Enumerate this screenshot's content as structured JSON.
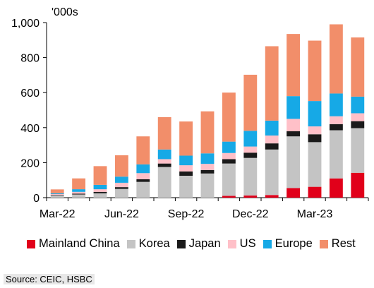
{
  "chart_data": {
    "type": "bar",
    "stacked": true,
    "unit_label": "'000s",
    "categories": [
      "Mar-22",
      "Apr-22",
      "May-22",
      "Jun-22",
      "Jul-22",
      "Aug-22",
      "Sep-22",
      "Oct-22",
      "Nov-22",
      "Dec-22",
      "Jan-23",
      "Feb-23",
      "Mar-23",
      "Apr-23",
      "May-23"
    ],
    "x_tick_labels": [
      "Mar-22",
      "Jun-22",
      "Sep-22",
      "Dec-22",
      "Mar-23"
    ],
    "y_ticks": [
      "0",
      "200",
      "400",
      "600",
      "800",
      "1,000"
    ],
    "ylim": [
      0,
      1000
    ],
    "series": [
      {
        "name": "Mainland China",
        "color": "#e1001a",
        "values": [
          0,
          0,
          0,
          0,
          0,
          0,
          0,
          0,
          10,
          12,
          15,
          55,
          62,
          110,
          142
        ]
      },
      {
        "name": "Korea",
        "color": "#c4c4c4",
        "values": [
          12,
          18,
          25,
          50,
          90,
          175,
          125,
          138,
          185,
          215,
          260,
          295,
          255,
          275,
          255
        ]
      },
      {
        "name": "Japan",
        "color": "#1a1a1a",
        "values": [
          3,
          5,
          8,
          10,
          15,
          20,
          25,
          20,
          25,
          30,
          35,
          30,
          45,
          35,
          40
        ]
      },
      {
        "name": "US",
        "color": "#ffc0c8",
        "values": [
          5,
          10,
          15,
          25,
          35,
          25,
          35,
          35,
          35,
          35,
          45,
          70,
          45,
          45,
          45
        ]
      },
      {
        "name": "Europe",
        "color": "#16a9e6",
        "values": [
          5,
          15,
          25,
          35,
          50,
          55,
          55,
          60,
          65,
          90,
          85,
          130,
          145,
          130,
          95
        ]
      },
      {
        "name": "Rest",
        "color": "#f28e6a",
        "values": [
          22,
          62,
          107,
          122,
          160,
          185,
          195,
          240,
          280,
          320,
          425,
          355,
          345,
          395,
          338
        ]
      }
    ]
  },
  "source_text": "Source: CEIC, HSBC"
}
